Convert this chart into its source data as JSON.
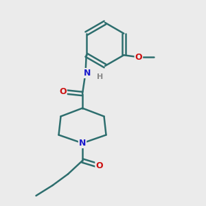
{
  "bg_color": "#ebebeb",
  "bond_color": "#2d6e6e",
  "bond_width": 1.8,
  "N_color": "#1a1acc",
  "O_color": "#cc1111",
  "H_color": "#888888",
  "font_size_atom": 9,
  "font_size_small": 8,
  "xlim": [
    0,
    10
  ],
  "ylim": [
    0,
    10
  ]
}
